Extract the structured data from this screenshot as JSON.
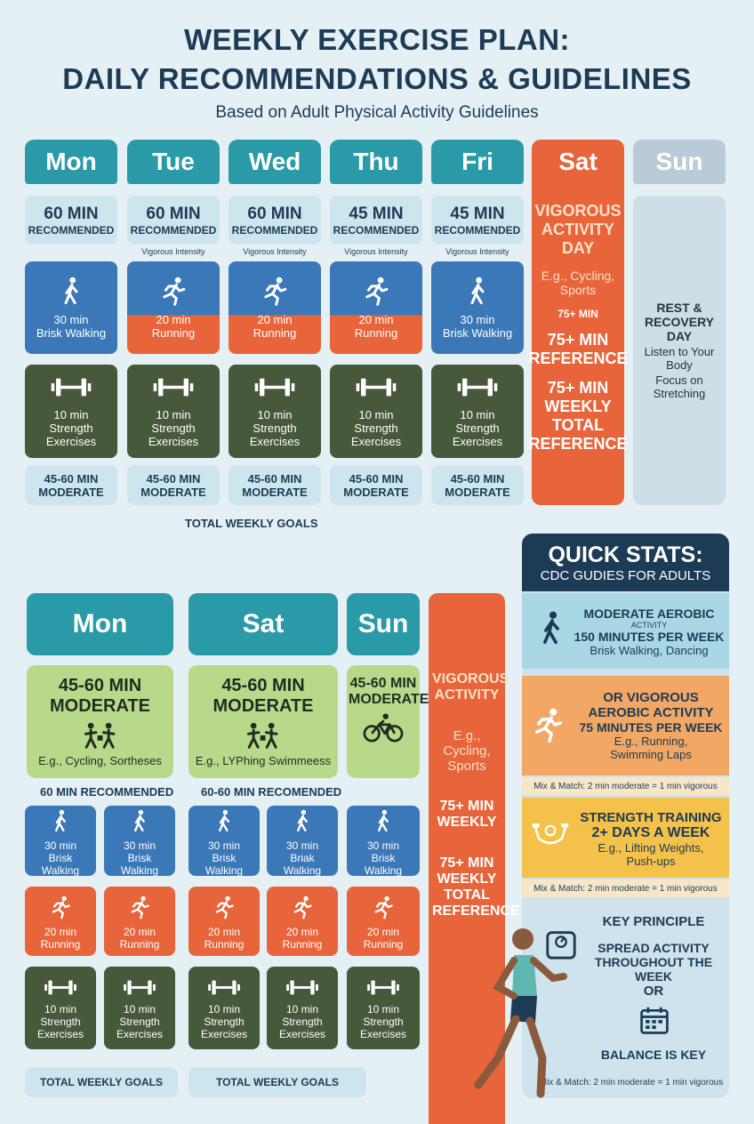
{
  "header": {
    "title_line1": "WEEKLY EXERCISE PLAN:",
    "title_line2": "DAILY RECOMMENDATIONS & GUIDELINES",
    "subtitle": "Based on Adult Physical Activity Guidelines"
  },
  "week": {
    "days": [
      {
        "name": "Mon",
        "amount": "60 MIN",
        "note": "RECOMMENDED",
        "cardio": {
          "duration": "30 min",
          "activity": "Brisk Walking",
          "color": "#3b78b8",
          "icon": "walk"
        },
        "strength": {
          "duration": "10 min",
          "activity": "Strength Exercises"
        },
        "goal": "45-60 MIN MODERATE"
      },
      {
        "name": "Tue",
        "amount": "60 MIN",
        "note": "RECOMMENDED",
        "intensity": "Vigorous Intensity",
        "cardio": {
          "duration": "20 min",
          "activity": "Running",
          "color": "#e8643a",
          "icon": "run"
        },
        "strength": {
          "duration": "10 min",
          "activity": "Strength Exercises"
        },
        "goal": "45-60 MIN MODERATE"
      },
      {
        "name": "Wed",
        "amount": "60 MIN",
        "note": "RECOMMENDED",
        "intensity": "Vigorous Intensity",
        "cardio": {
          "duration": "20 min",
          "activity": "Running",
          "color": "#e8643a",
          "icon": "run"
        },
        "strength": {
          "duration": "10 min",
          "activity": "Strength Exercises"
        },
        "goal": "45-60 MIN MODERATE"
      },
      {
        "name": "Thu",
        "amount": "45 MIN",
        "note": "RECOMMENDED",
        "intensity": "Vigorous Intensity",
        "cardio": {
          "duration": "20 min",
          "activity": "Running",
          "color": "#e8643a",
          "icon": "run"
        },
        "strength": {
          "duration": "10 min",
          "activity": "Strength Exercises"
        },
        "goal": "45-60 MIN MODERATE"
      },
      {
        "name": "Fri",
        "amount": "45 MIN",
        "note": "RECOMMENDED",
        "intensity": "Vigorous Intensity",
        "cardio": {
          "duration": "30 min",
          "activity": "Brisk Walking",
          "color": "#3b78b8",
          "icon": "walk"
        },
        "strength": {
          "duration": "10 min",
          "activity": "Strength Exercises"
        },
        "goal": "45-60 MIN MODERATE"
      }
    ],
    "saturday": {
      "name": "Sat",
      "lines": [
        "VIGOROUS ACTIVITY DAY",
        "E.g., Cycling, Sports",
        "75+ MIN",
        "75+ MIN REFERENCE",
        "75+ MIN WEEKLY TOTAL REFERENCE"
      ]
    },
    "sunday": {
      "name": "Sun",
      "lines": [
        "REST & RECOVERY DAY",
        "Listen to Your Body",
        "Focus on Stretching"
      ]
    },
    "footer": "TOTAL WEEKLY GOALS"
  },
  "plan": {
    "headers": [
      "Mon",
      "Sat",
      "Sun"
    ],
    "goals": [
      {
        "amount": "45-60 MIN MODERATE",
        "example": "E.g., Cycling, Sortheses",
        "icon": "people"
      },
      {
        "amount": "45-60 MIN MODERATE",
        "example": "E.g., LYPhing Swimmeess",
        "icon": "people"
      },
      {
        "amount": "45-60 MIN MODERATE",
        "icon": "bike"
      }
    ],
    "labels": [
      "60 MIN RECOMMENDED",
      "60-60 MIN RECOMENDED"
    ],
    "tiles": [
      [
        {
          "duration": "30 min",
          "activity": "Brisk Walking",
          "color": "#3b78b8",
          "icon": "walk"
        },
        {
          "duration": "30 min",
          "activity": "Brisk Walking",
          "color": "#3b78b8",
          "icon": "walk"
        },
        {
          "duration": "30 min",
          "activity": "Brisk Walking",
          "color": "#3b78b8",
          "icon": "walk"
        },
        {
          "duration": "30 min",
          "activity": "Briak Walking",
          "color": "#3b78b8",
          "icon": "walk"
        },
        {
          "duration": "30 min",
          "activity": "Brisk Walking",
          "color": "#3b78b8",
          "icon": "walk"
        }
      ],
      [
        {
          "duration": "20 min",
          "activity": "Running",
          "color": "#e8643a",
          "icon": "run"
        },
        {
          "duration": "20 min",
          "activity": "Running",
          "color": "#e8643a",
          "icon": "run"
        },
        {
          "duration": "20 min",
          "activity": "Running",
          "color": "#e8643a",
          "icon": "run"
        },
        {
          "duration": "20 min",
          "activity": "Running",
          "color": "#e8643a",
          "icon": "run"
        },
        {
          "duration": "20 min",
          "activity": "Running",
          "color": "#e8643a",
          "icon": "run"
        }
      ],
      [
        {
          "duration": "10 min",
          "activity": "Strength Exercises",
          "color": "#48583a",
          "icon": "dumbbell"
        },
        {
          "duration": "10 min",
          "activity": "Strength Exercises",
          "color": "#48583a",
          "icon": "dumbbell"
        },
        {
          "duration": "10 min",
          "activity": "Strength Exercises",
          "color": "#48583a",
          "icon": "dumbbell"
        },
        {
          "duration": "10 min",
          "activity": "Strength Exercises",
          "color": "#48583a",
          "icon": "dumbbell"
        },
        {
          "duration": "10 min",
          "activity": "Strength Exercises",
          "color": "#48583a",
          "icon": "dumbbell"
        }
      ]
    ],
    "vigorous": [
      "VIGOROUS ACTIVITY",
      "E.g., Cycling, Sports",
      "75+ MIN WEEKLY",
      "75+ MIN WEEKLY TOTAL REFERENCE"
    ],
    "footers": [
      "TOTAL WEEKLY GOALS",
      "TOTAL WEEKLY GOALS"
    ]
  },
  "quick_stats": {
    "title": "QUICK STATS:",
    "subtitle": "CDC GUDIES FOR ADULTS",
    "moderate": {
      "heading": "MODERATE AEROBIC",
      "sub": "ACTIVITY",
      "amount": "150 MINUTES PER WEEK",
      "example": "Brisk Walking, Dancing"
    },
    "vigorous": {
      "heading": "OR VIGOROUS AEROBIC ACTIVITY",
      "amount": "75 MINUTES PER WEEK",
      "example": "E.g., Running, Swimming Laps",
      "note": "Mix & Match: 2 min moderate = 1 min vigorous"
    },
    "strength": {
      "heading": "STRENGTH TRAINING",
      "amount": "2+ DAYS A WEEK",
      "example": "E.g., Lifting Weights, Push-ups",
      "note": "Mix & Match: 2 min moderate = 1 min vigorous"
    },
    "key": {
      "heading": "KEY PRINCIPLE",
      "line1": "SPREAD ACTIVITY THROUGHOUT THE WEEK",
      "or": "OR",
      "line2": "BALANCE IS KEY",
      "note": "Mix & Match: 2 min moderate = 1 min vigorous"
    }
  }
}
